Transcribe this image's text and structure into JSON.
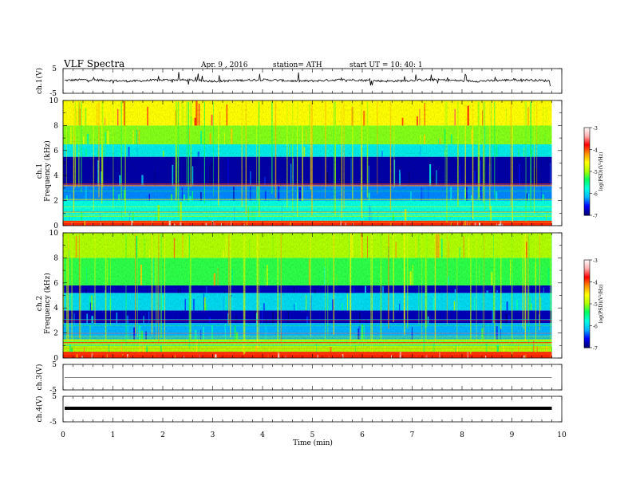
{
  "header": {
    "title": "VLF  Spectra",
    "date": "Apr. 9  , 2016",
    "station": "station= ATH",
    "start": "start  UT =   10: 40: 1"
  },
  "chart_data": {
    "type": "heatmap",
    "x": {
      "label": "Time  (min)",
      "range": [
        0,
        10
      ],
      "ticks": [
        0,
        1,
        2,
        3,
        4,
        5,
        6,
        7,
        8,
        9,
        10
      ],
      "data_end": 9.8
    },
    "panels": [
      {
        "id": "ch1-waveform",
        "kind": "waveform",
        "ylabel": "ch.1(V)",
        "ylim": [
          -5,
          5
        ],
        "ytick_labels": [
          "5",
          "-5"
        ],
        "trace": "noisy baseline near +0.2 V with frequent spikes up to about ±3 V"
      },
      {
        "id": "ch1-spectrogram",
        "kind": "spectrogram",
        "ylabel_top": "ch.1",
        "ylabel": "Frequency  (kHz)",
        "ylim": [
          0,
          10
        ],
        "ytick_labels": [
          "0",
          "2",
          "4",
          "6",
          "8",
          "10"
        ],
        "colorbar": {
          "label": "log(PSD)(V²/Hz)",
          "range": [
            -7,
            -3
          ],
          "tick_labels": [
            "-3",
            "-4",
            "-5",
            "-6",
            "-7"
          ],
          "colors": [
            "#000070",
            "#0000ff",
            "#00b4ff",
            "#00ffe0",
            "#00ff60",
            "#b0ff00",
            "#ffff00",
            "#ff9000",
            "#ff0000",
            "#ffb0b0",
            "#ffffff"
          ]
        },
        "bands_khz": [
          {
            "from": 0.0,
            "to": 0.4,
            "level": -3.9
          },
          {
            "from": 0.4,
            "to": 2.0,
            "level": -5.8
          },
          {
            "from": 2.0,
            "to": 3.2,
            "level": -6.3
          },
          {
            "from": 3.2,
            "to": 5.5,
            "level": -6.85
          },
          {
            "from": 5.5,
            "to": 6.5,
            "level": -5.9
          },
          {
            "from": 6.5,
            "to": 8.0,
            "level": -5.1
          },
          {
            "from": 8.0,
            "to": 10.0,
            "level": -4.6
          }
        ]
      },
      {
        "id": "ch2-spectrogram",
        "kind": "spectrogram",
        "ylabel_top": "ch.2",
        "ylabel": "Frequency  (kHz)",
        "ylim": [
          0,
          10
        ],
        "ytick_labels": [
          "0",
          "2",
          "4",
          "6",
          "8",
          "10"
        ],
        "colorbar": {
          "label": "log(PSD)(V²/Hz)",
          "range": [
            -7,
            -3
          ],
          "tick_labels": [
            "-3",
            "-4",
            "-5",
            "-6",
            "-7"
          ],
          "colors": [
            "#000070",
            "#0000ff",
            "#00b4ff",
            "#00ffe0",
            "#00ff60",
            "#b0ff00",
            "#ffff00",
            "#ff9000",
            "#ff0000",
            "#ffb0b0",
            "#ffffff"
          ]
        },
        "bands_khz": [
          {
            "from": 0.0,
            "to": 0.5,
            "level": -3.9
          },
          {
            "from": 0.5,
            "to": 1.5,
            "level": -5.0
          },
          {
            "from": 1.5,
            "to": 2.8,
            "level": -6.2
          },
          {
            "from": 2.8,
            "to": 3.8,
            "level": -6.8
          },
          {
            "from": 3.8,
            "to": 5.2,
            "level": -6.0
          },
          {
            "from": 5.2,
            "to": 5.8,
            "level": -6.8
          },
          {
            "from": 5.8,
            "to": 8.0,
            "level": -5.3
          },
          {
            "from": 8.0,
            "to": 10.0,
            "level": -5.0
          }
        ]
      },
      {
        "id": "ch3-waveform",
        "kind": "waveform",
        "ylabel": "ch.3(V)",
        "ylim": [
          -5,
          5
        ],
        "ytick_labels": [
          "5",
          "-5"
        ],
        "trace": "near-flat line close to 0 V"
      },
      {
        "id": "ch4-waveform",
        "kind": "waveform",
        "ylabel": "ch.4(V)",
        "ylim": [
          -5,
          5
        ],
        "ytick_labels": [
          "5",
          "-5"
        ],
        "trace": "thick flat band near 0 V"
      }
    ]
  }
}
